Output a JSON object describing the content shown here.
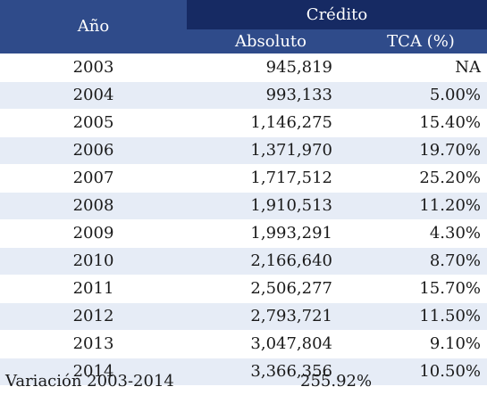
{
  "header": {
    "year_label": "Año",
    "group_label": "Crédito",
    "col_absolute": "Absoluto",
    "col_tca": "TCA (%)"
  },
  "rows": [
    {
      "year": "2003",
      "absolute": "945,819",
      "tca": "NA"
    },
    {
      "year": "2004",
      "absolute": "993,133",
      "tca": "5.00%"
    },
    {
      "year": "2005",
      "absolute": "1,146,275",
      "tca": "15.40%"
    },
    {
      "year": "2006",
      "absolute": "1,371,970",
      "tca": "19.70%"
    },
    {
      "year": "2007",
      "absolute": "1,717,512",
      "tca": "25.20%"
    },
    {
      "year": "2008",
      "absolute": "1,910,513",
      "tca": "11.20%"
    },
    {
      "year": "2009",
      "absolute": "1,993,291",
      "tca": "4.30%"
    },
    {
      "year": "2010",
      "absolute": "2,166,640",
      "tca": "8.70%"
    },
    {
      "year": "2011",
      "absolute": "2,506,277",
      "tca": "15.70%"
    },
    {
      "year": "2012",
      "absolute": "2,793,721",
      "tca": "11.50%"
    },
    {
      "year": "2013",
      "absolute": "3,047,804",
      "tca": "9.10%"
    },
    {
      "year": "2014",
      "absolute": "3,366,356",
      "tca": "10.50%"
    }
  ],
  "footer": {
    "label": "Variación 2003-2014",
    "value": "255.92%"
  },
  "colors": {
    "header_dark": "#162a63",
    "header_mid": "#2f4b8a",
    "row_stripe": "#e6ecf6"
  }
}
